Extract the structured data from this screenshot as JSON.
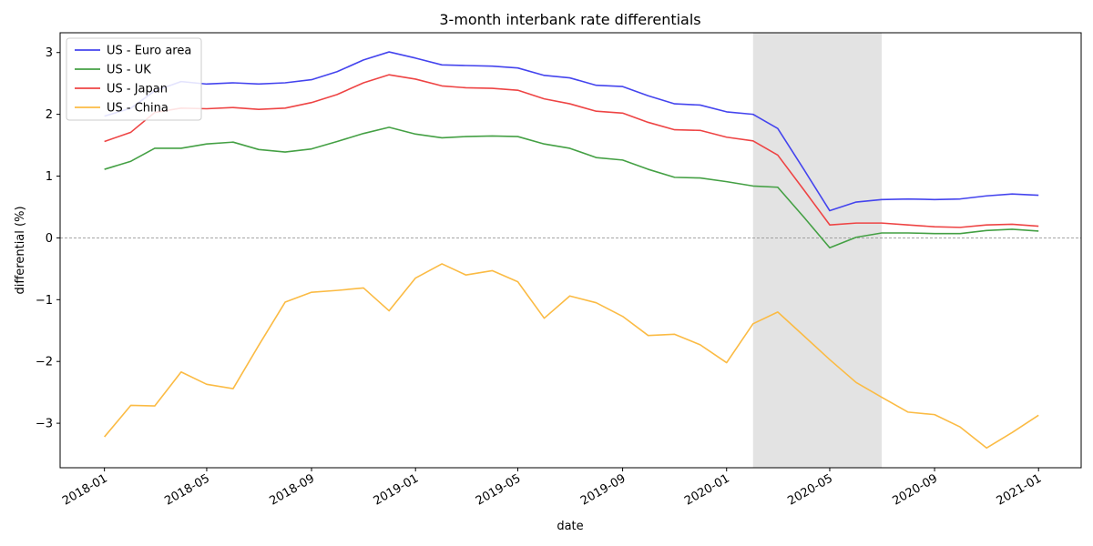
{
  "chart_data": {
    "type": "line",
    "title": "3-month interbank rate differentials",
    "xlabel": "date",
    "ylabel": "differential (%)",
    "x": [
      "2018-01",
      "2018-02",
      "2018-03",
      "2018-04",
      "2018-05",
      "2018-06",
      "2018-07",
      "2018-08",
      "2018-09",
      "2018-10",
      "2018-11",
      "2018-12",
      "2019-01",
      "2019-02",
      "2019-03",
      "2019-04",
      "2019-05",
      "2019-06",
      "2019-07",
      "2019-08",
      "2019-09",
      "2019-10",
      "2019-11",
      "2019-12",
      "2020-01",
      "2020-02",
      "2020-03",
      "2020-04",
      "2020-05",
      "2020-06",
      "2020-07",
      "2020-08",
      "2020-09",
      "2020-10",
      "2020-11",
      "2020-12",
      "2021-01"
    ],
    "xlim": [
      "2017-11-10",
      "2021-02-20"
    ],
    "ylim": [
      -3.72,
      3.32
    ],
    "xticks": [
      "2018-01",
      "2018-05",
      "2018-09",
      "2019-01",
      "2019-05",
      "2019-09",
      "2020-01",
      "2020-05",
      "2020-09",
      "2021-01"
    ],
    "yticks": [
      3,
      2,
      1,
      0,
      -1,
      -2,
      -3
    ],
    "ytick_labels": [
      "3",
      "2",
      "1",
      "0",
      "−1",
      "−2",
      "−3"
    ],
    "reference_line": 0,
    "shaded_span": [
      "2020-02",
      "2020-07"
    ],
    "grid": false,
    "legend_position": "top-left",
    "series": [
      {
        "name": "US - Euro area",
        "color": "#4444ee",
        "values": [
          1.97,
          2.1,
          2.38,
          2.53,
          2.49,
          2.51,
          2.49,
          2.51,
          2.56,
          2.69,
          2.88,
          3.01,
          2.91,
          2.8,
          2.79,
          2.78,
          2.75,
          2.63,
          2.59,
          2.47,
          2.45,
          2.3,
          2.17,
          2.15,
          2.04,
          2.0,
          1.77,
          1.1,
          0.44,
          0.58,
          0.62,
          0.63,
          0.62,
          0.63,
          0.68,
          0.71,
          0.69
        ]
      },
      {
        "name": "US - UK",
        "color": "#44a044",
        "values": [
          1.11,
          1.24,
          1.45,
          1.45,
          1.52,
          1.55,
          1.43,
          1.39,
          1.44,
          1.56,
          1.69,
          1.79,
          1.68,
          1.62,
          1.64,
          1.65,
          1.64,
          1.52,
          1.45,
          1.3,
          1.26,
          1.11,
          0.98,
          0.97,
          0.91,
          0.84,
          0.82,
          0.33,
          -0.16,
          0.01,
          0.08,
          0.08,
          0.07,
          0.07,
          0.12,
          0.14,
          0.11
        ]
      },
      {
        "name": "US - Japan",
        "color": "#ee4444",
        "values": [
          1.56,
          1.71,
          2.03,
          2.1,
          2.09,
          2.11,
          2.08,
          2.1,
          2.19,
          2.32,
          2.51,
          2.64,
          2.57,
          2.46,
          2.43,
          2.42,
          2.39,
          2.25,
          2.17,
          2.05,
          2.02,
          1.87,
          1.75,
          1.74,
          1.63,
          1.57,
          1.34,
          0.77,
          0.21,
          0.24,
          0.24,
          0.21,
          0.18,
          0.17,
          0.21,
          0.22,
          0.19
        ]
      },
      {
        "name": "US - China",
        "color": "#fbbb44",
        "values": [
          -3.22,
          -2.71,
          -2.72,
          -2.17,
          -2.37,
          -2.44,
          -1.74,
          -1.04,
          -0.88,
          -0.85,
          -0.81,
          -1.18,
          -0.65,
          -0.42,
          -0.6,
          -0.53,
          -0.71,
          -1.3,
          -0.94,
          -1.05,
          -1.27,
          -1.58,
          -1.56,
          -1.73,
          -2.02,
          -1.39,
          -1.2,
          -1.59,
          -1.97,
          -2.34,
          -2.58,
          -2.82,
          -2.86,
          -3.06,
          -3.4,
          -3.15,
          -2.87
        ]
      }
    ]
  }
}
